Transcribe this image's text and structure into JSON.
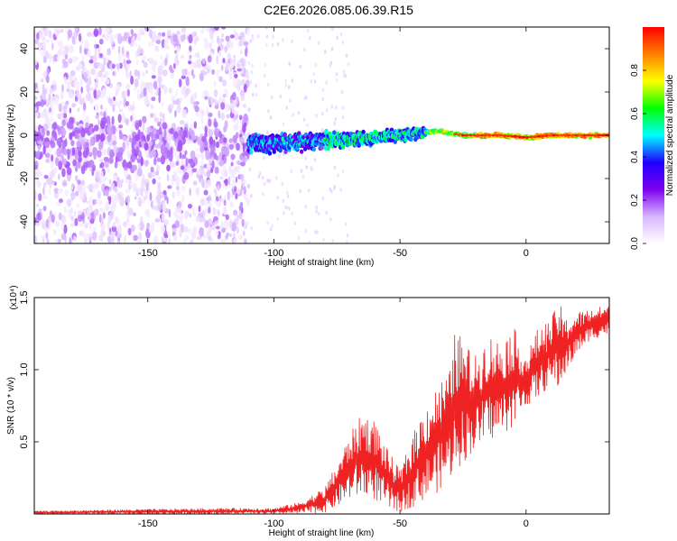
{
  "figure": {
    "title": "C2E6.2026.085.06.39.R15"
  },
  "chart_data": [
    {
      "type": "heatmap",
      "name": "spectrogram",
      "xlabel": "Height of straight line (km)",
      "ylabel": "Frequency (Hz)",
      "xlim": [
        -195,
        33
      ],
      "ylim": [
        -50,
        50
      ],
      "xticks": [
        -150,
        -100,
        -50,
        0
      ],
      "yticks": [
        -40,
        -20,
        0,
        20,
        40
      ],
      "x_range_noisy_scatter": [
        -195,
        -110
      ],
      "x_range_coherent_band": [
        -110,
        33
      ],
      "band_center_freq": [
        {
          "x": -110,
          "f": -4
        },
        {
          "x": -90,
          "f": -3
        },
        {
          "x": -70,
          "f": -2
        },
        {
          "x": -50,
          "f": 0
        },
        {
          "x": -35,
          "f": 2
        },
        {
          "x": -25,
          "f": 0
        },
        {
          "x": -10,
          "f": 0
        },
        {
          "x": 0,
          "f": -1
        },
        {
          "x": 10,
          "f": 0
        },
        {
          "x": 33,
          "f": 0
        }
      ],
      "colorbar": {
        "label": "Normalized spectral amplitude",
        "range": [
          0,
          1
        ],
        "ticks": [
          "0.0",
          "0.2",
          "0.4",
          "0.6",
          "0.8"
        ],
        "colors": [
          "#ffffff",
          "#d8b6ff",
          "#7c00ee",
          "#1f00ff",
          "#00ffff",
          "#00ff00",
          "#ffff00",
          "#ff8000",
          "#ff0000"
        ]
      }
    },
    {
      "type": "line",
      "name": "snr",
      "xlabel": "Height of straight line (km)",
      "ylabel": "SNR (10 * v/v)",
      "y_multiplier_label": "(x10⁴)",
      "xlim": [
        -195,
        33
      ],
      "ylim": [
        0,
        1.5
      ],
      "xticks": [
        -150,
        -100,
        -50,
        0
      ],
      "yticks": [
        0.5,
        1.0,
        1.5
      ],
      "line_color": "#ee2222",
      "envelope": {
        "x": [
          -195,
          -160,
          -120,
          -100,
          -90,
          -80,
          -75,
          -70,
          -65,
          -60,
          -55,
          -50,
          -45,
          -40,
          -35,
          -30,
          -28,
          -25,
          -20,
          -15,
          -10,
          -5,
          0,
          5,
          10,
          13,
          15,
          20,
          25,
          33
        ],
        "lower": [
          0.0,
          0.0,
          0.0,
          0.0,
          0.0,
          0.01,
          0.05,
          0.1,
          0.12,
          0.1,
          0.03,
          0.01,
          0.05,
          0.1,
          0.15,
          0.25,
          0.3,
          0.35,
          0.45,
          0.5,
          0.55,
          0.6,
          0.75,
          0.8,
          0.9,
          0.85,
          0.95,
          1.1,
          1.2,
          1.25
        ],
        "upper": [
          0.02,
          0.03,
          0.04,
          0.04,
          0.08,
          0.18,
          0.35,
          0.55,
          0.7,
          0.65,
          0.45,
          0.3,
          0.55,
          0.75,
          0.9,
          1.0,
          1.3,
          1.2,
          1.1,
          1.25,
          1.2,
          1.3,
          1.1,
          1.3,
          1.35,
          1.5,
          1.35,
          1.4,
          1.42,
          1.45
        ]
      }
    }
  ]
}
